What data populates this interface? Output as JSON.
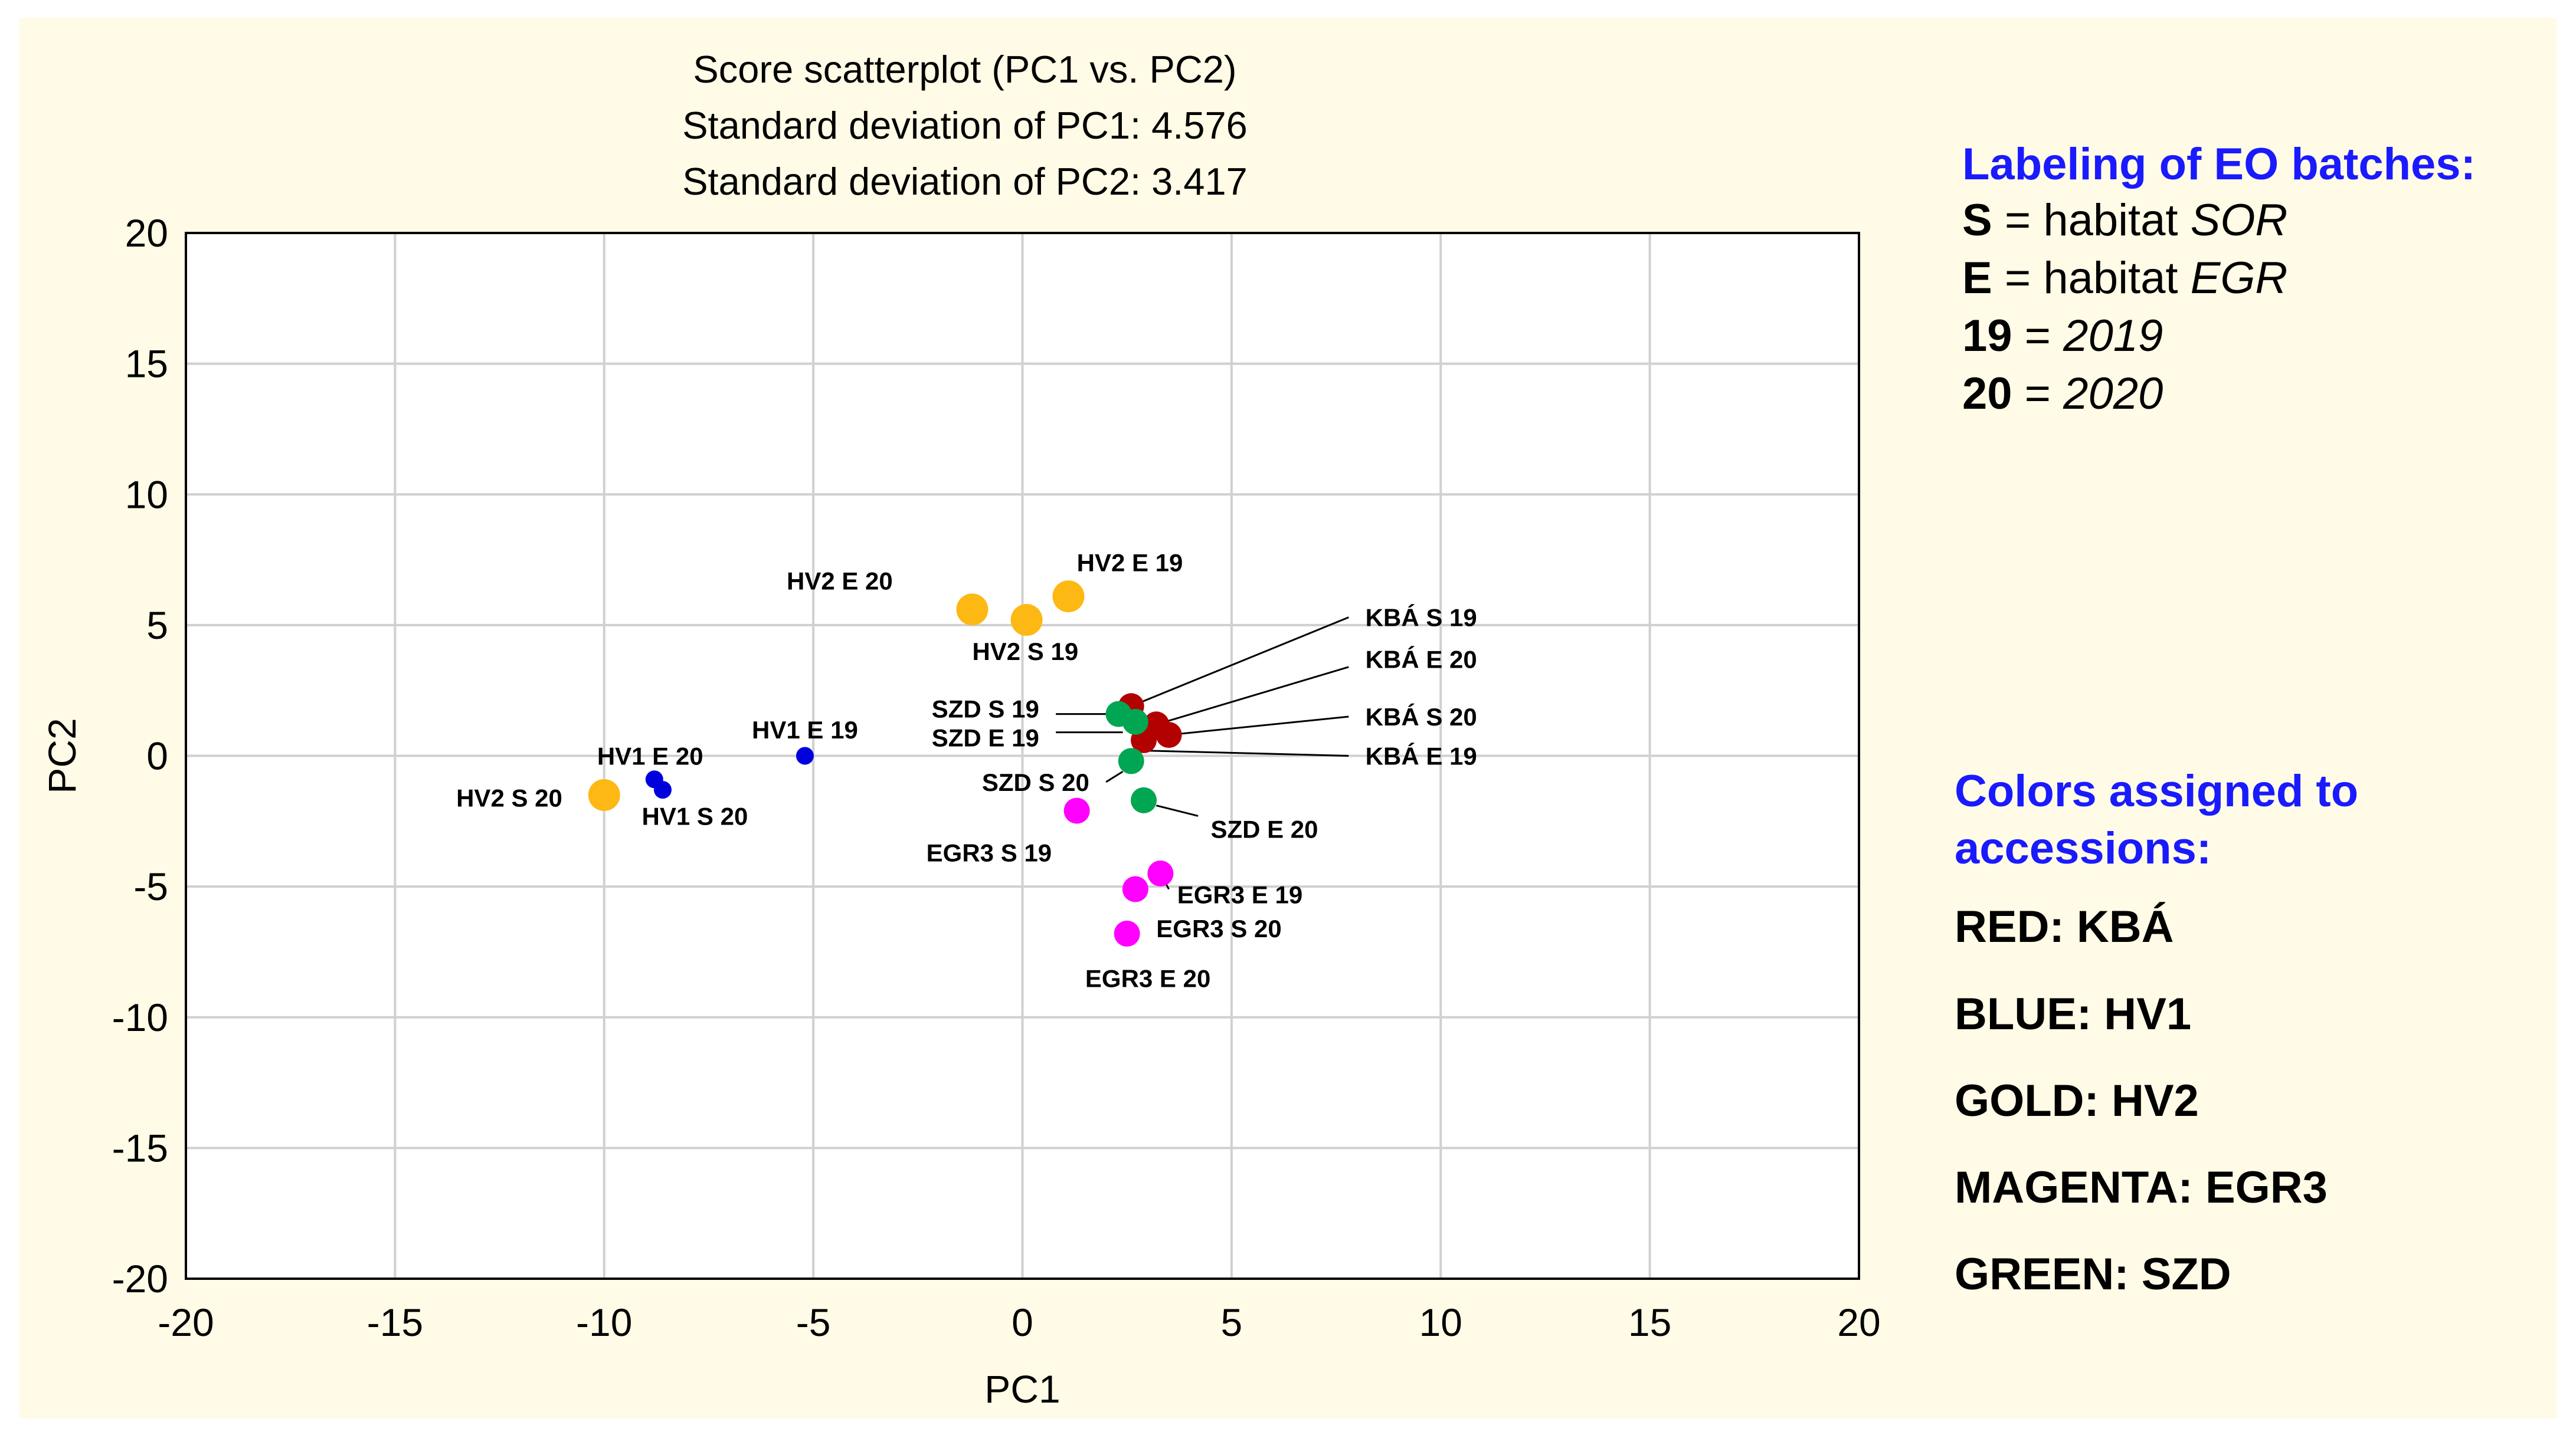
{
  "chart_data": {
    "type": "scatter",
    "title": [
      "Score scatterplot (PC1 vs. PC2)",
      "Standard deviation of PC1: 4.576",
      "Standard deviation of PC2: 3.417"
    ],
    "xlabel": "PC1",
    "ylabel": "PC2",
    "xlim": [
      -20,
      20
    ],
    "ylim": [
      -20,
      20
    ],
    "xticks": [
      -20,
      -15,
      -10,
      -5,
      0,
      5,
      10,
      15,
      20
    ],
    "yticks": [
      -20,
      -15,
      -10,
      -5,
      0,
      5,
      10,
      15,
      20
    ],
    "xtick_labels": [
      "-20",
      "-15",
      "-10",
      "-5",
      "0",
      "5",
      "10",
      "15",
      "20"
    ],
    "ytick_labels": [
      "-20",
      "-15",
      "-10",
      "-5",
      "0",
      "5",
      "10",
      "15",
      "20"
    ],
    "grid": true,
    "colors": {
      "RED": "#b30000",
      "BLUE": "#0000dd",
      "GOLD": "#fdb813",
      "MAGENTA": "#ff00ff",
      "GREEN": "#00a651"
    },
    "points": [
      {
        "label": "HV2 E 20",
        "x": -1.2,
        "y": 5.6,
        "color": "GOLD",
        "size": "large",
        "lx": -3.1,
        "ly": 6.7,
        "anchor": "end"
      },
      {
        "label": "HV2 S 19",
        "x": 0.1,
        "y": 5.2,
        "color": "GOLD",
        "size": "large",
        "lx": -1.2,
        "ly": 4.0,
        "anchor": "start"
      },
      {
        "label": "HV2 E 19",
        "x": 1.1,
        "y": 6.1,
        "color": "GOLD",
        "size": "large",
        "lx": 1.3,
        "ly": 7.4,
        "anchor": "start"
      },
      {
        "label": "HV2 S 20",
        "x": -10.0,
        "y": -1.5,
        "color": "GOLD",
        "size": "large",
        "lx": -11.0,
        "ly": -1.6,
        "anchor": "end"
      },
      {
        "label": "HV1 E 19",
        "x": -5.2,
        "y": 0.0,
        "color": "BLUE",
        "size": "small",
        "lx": -5.2,
        "ly": 1.0,
        "anchor": "middle"
      },
      {
        "label": "HV1 E 20",
        "x": -8.8,
        "y": -0.9,
        "color": "BLUE",
        "size": "small",
        "lx": -8.9,
        "ly": 0.0,
        "anchor": "middle"
      },
      {
        "label": "HV1 S 20",
        "x": -8.6,
        "y": -1.3,
        "color": "BLUE",
        "size": "small",
        "lx": -9.1,
        "ly": -2.3,
        "anchor": "start"
      },
      {
        "label": "KBÁ S 19",
        "x": 2.6,
        "y": 1.9,
        "color": "RED",
        "size": "medium",
        "lx": 8.2,
        "ly": 5.3,
        "anchor": "start",
        "leader": [
          2.6,
          1.9,
          7.8,
          5.3
        ]
      },
      {
        "label": "KBÁ E 20",
        "x": 3.2,
        "y": 1.2,
        "color": "RED",
        "size": "medium",
        "lx": 8.2,
        "ly": 3.7,
        "anchor": "start",
        "leader": [
          3.2,
          1.2,
          7.8,
          3.4
        ]
      },
      {
        "label": "KBÁ S 20",
        "x": 3.5,
        "y": 0.8,
        "color": "RED",
        "size": "medium",
        "lx": 8.2,
        "ly": 1.5,
        "anchor": "start",
        "leader": [
          3.5,
          0.8,
          7.8,
          1.5
        ]
      },
      {
        "label": "KBÁ E 19",
        "x": 2.9,
        "y": 0.6,
        "color": "RED",
        "size": "medium",
        "lx": 8.2,
        "ly": 0.0,
        "anchor": "start",
        "leader": [
          2.9,
          0.2,
          7.8,
          0.0
        ]
      },
      {
        "label": "SZD S 19",
        "x": 2.3,
        "y": 1.6,
        "color": "GREEN",
        "size": "medium",
        "lx": 0.4,
        "ly": 1.8,
        "anchor": "end",
        "leader": [
          0.8,
          1.6,
          2.1,
          1.6
        ]
      },
      {
        "label": "SZD E 19",
        "x": 2.7,
        "y": 1.3,
        "color": "GREEN",
        "size": "medium",
        "lx": 0.4,
        "ly": 0.7,
        "anchor": "end",
        "leader": [
          0.8,
          0.9,
          2.4,
          0.9
        ]
      },
      {
        "label": "SZD S 20",
        "x": 2.6,
        "y": -0.2,
        "color": "GREEN",
        "size": "medium",
        "lx": 1.6,
        "ly": -1.0,
        "anchor": "end",
        "leader": [
          2.0,
          -1.0,
          2.4,
          -0.6
        ]
      },
      {
        "label": "SZD E 20",
        "x": 2.9,
        "y": -1.7,
        "color": "GREEN",
        "size": "medium",
        "lx": 4.5,
        "ly": -2.8,
        "anchor": "start",
        "leader": [
          3.2,
          -1.9,
          4.2,
          -2.3
        ]
      },
      {
        "label": "EGR3 S 19",
        "x": 1.3,
        "y": -2.1,
        "color": "MAGENTA",
        "size": "medium",
        "lx": 0.7,
        "ly": -3.7,
        "anchor": "end"
      },
      {
        "label": "EGR3 E 19",
        "x": 3.3,
        "y": -4.5,
        "color": "MAGENTA",
        "size": "medium",
        "lx": 3.7,
        "ly": -5.3,
        "anchor": "start",
        "leader": [
          3.3,
          -4.5,
          3.5,
          -5.1
        ]
      },
      {
        "label": "EGR3 S 20",
        "x": 2.7,
        "y": -5.1,
        "color": "MAGENTA",
        "size": "medium",
        "lx": 3.2,
        "ly": -6.6,
        "anchor": "start"
      },
      {
        "label": "EGR3 E 20",
        "x": 2.5,
        "y": -6.8,
        "color": "MAGENTA",
        "size": "medium",
        "lx": 3.0,
        "ly": -8.5,
        "anchor": "middle"
      }
    ]
  },
  "legend": {
    "labeling_heading": "Labeling of EO batches:",
    "labeling": [
      {
        "key": "S",
        "eq": " = habitat ",
        "val": "SOR"
      },
      {
        "key": "E",
        "eq": " = habitat ",
        "val": "EGR"
      },
      {
        "key": "19",
        "eq": " = ",
        "val": "2019"
      },
      {
        "key": "20",
        "eq": " = ",
        "val": "2020"
      }
    ],
    "colors_heading_line1": "Colors assigned to",
    "colors_heading_line2": "accessions:",
    "colors": [
      "RED: KBÁ",
      "BLUE: HV1",
      "GOLD: HV2",
      "MAGENTA: EGR3",
      "GREEN: SZD"
    ]
  }
}
